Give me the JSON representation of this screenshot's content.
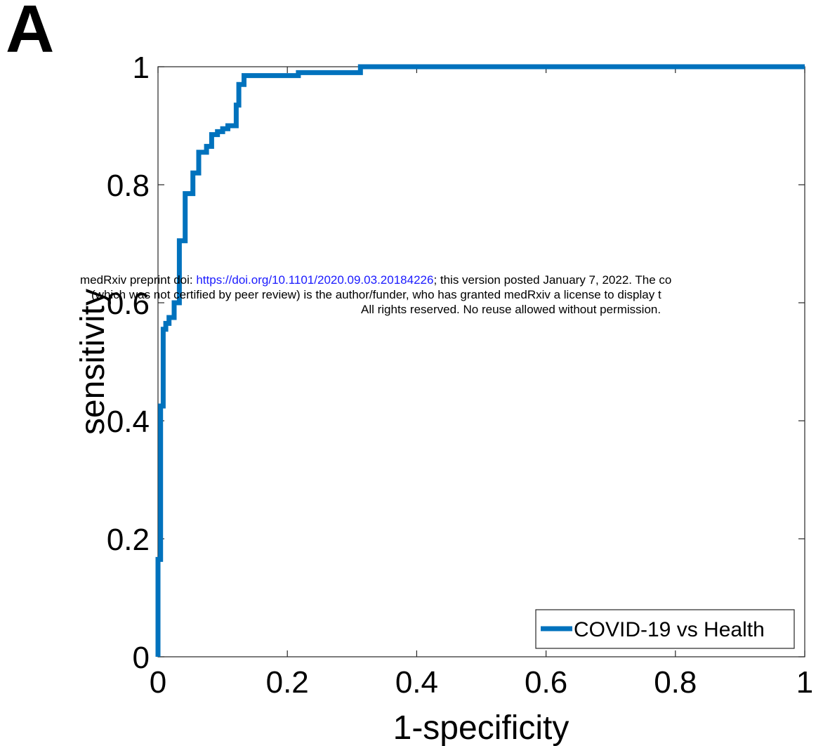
{
  "panel_label": "A",
  "watermark": {
    "line1_prefix": "medRxiv preprint doi: ",
    "doi_link": "https://doi.org/10.1101/2020.09.03.20184226",
    "line1_suffix": "; this version posted January 7, 2022. The co",
    "line2": "(which was not certified by peer review) is the author/funder, who has granted medRxiv a license to display t",
    "line3": "All rights reserved. No reuse allowed without permission."
  },
  "chart_data": {
    "type": "line",
    "title": "",
    "xlabel": "1-specificity",
    "ylabel": "sensitivity",
    "xlim": [
      0,
      1
    ],
    "ylim": [
      0,
      1
    ],
    "xticks": [
      0,
      0.2,
      0.4,
      0.6,
      0.8,
      1
    ],
    "xtick_labels": [
      "0",
      "0.2",
      "0.4",
      "0.6",
      "0.8",
      "1"
    ],
    "yticks": [
      0,
      0.2,
      0.4,
      0.6,
      0.8,
      1
    ],
    "ytick_labels": [
      "0",
      "0.2",
      "0.4",
      "0.6",
      "0.8",
      "1"
    ],
    "grid": false,
    "legend_position": "bottom-right",
    "series": [
      {
        "name": "COVID-19 vs Health",
        "color": "#0072BD",
        "x": [
          0,
          0,
          0.004,
          0.004,
          0.008,
          0.008,
          0.012,
          0.012,
          0.017,
          0.017,
          0.025,
          0.025,
          0.033,
          0.033,
          0.042,
          0.042,
          0.054,
          0.054,
          0.063,
          0.063,
          0.075,
          0.075,
          0.083,
          0.083,
          0.092,
          0.092,
          0.1,
          0.1,
          0.108,
          0.108,
          0.121,
          0.121,
          0.125,
          0.125,
          0.133,
          0.133,
          0.142,
          0.142,
          0.217,
          0.217,
          0.313,
          0.313,
          1
        ],
        "y": [
          0,
          0.165,
          0.165,
          0.425,
          0.425,
          0.555,
          0.555,
          0.565,
          0.565,
          0.575,
          0.575,
          0.6,
          0.6,
          0.705,
          0.705,
          0.785,
          0.785,
          0.82,
          0.82,
          0.855,
          0.855,
          0.865,
          0.865,
          0.885,
          0.885,
          0.89,
          0.89,
          0.895,
          0.895,
          0.9,
          0.9,
          0.935,
          0.935,
          0.97,
          0.97,
          0.985,
          0.985,
          0.985,
          0.985,
          0.99,
          0.99,
          1,
          1
        ]
      }
    ]
  }
}
